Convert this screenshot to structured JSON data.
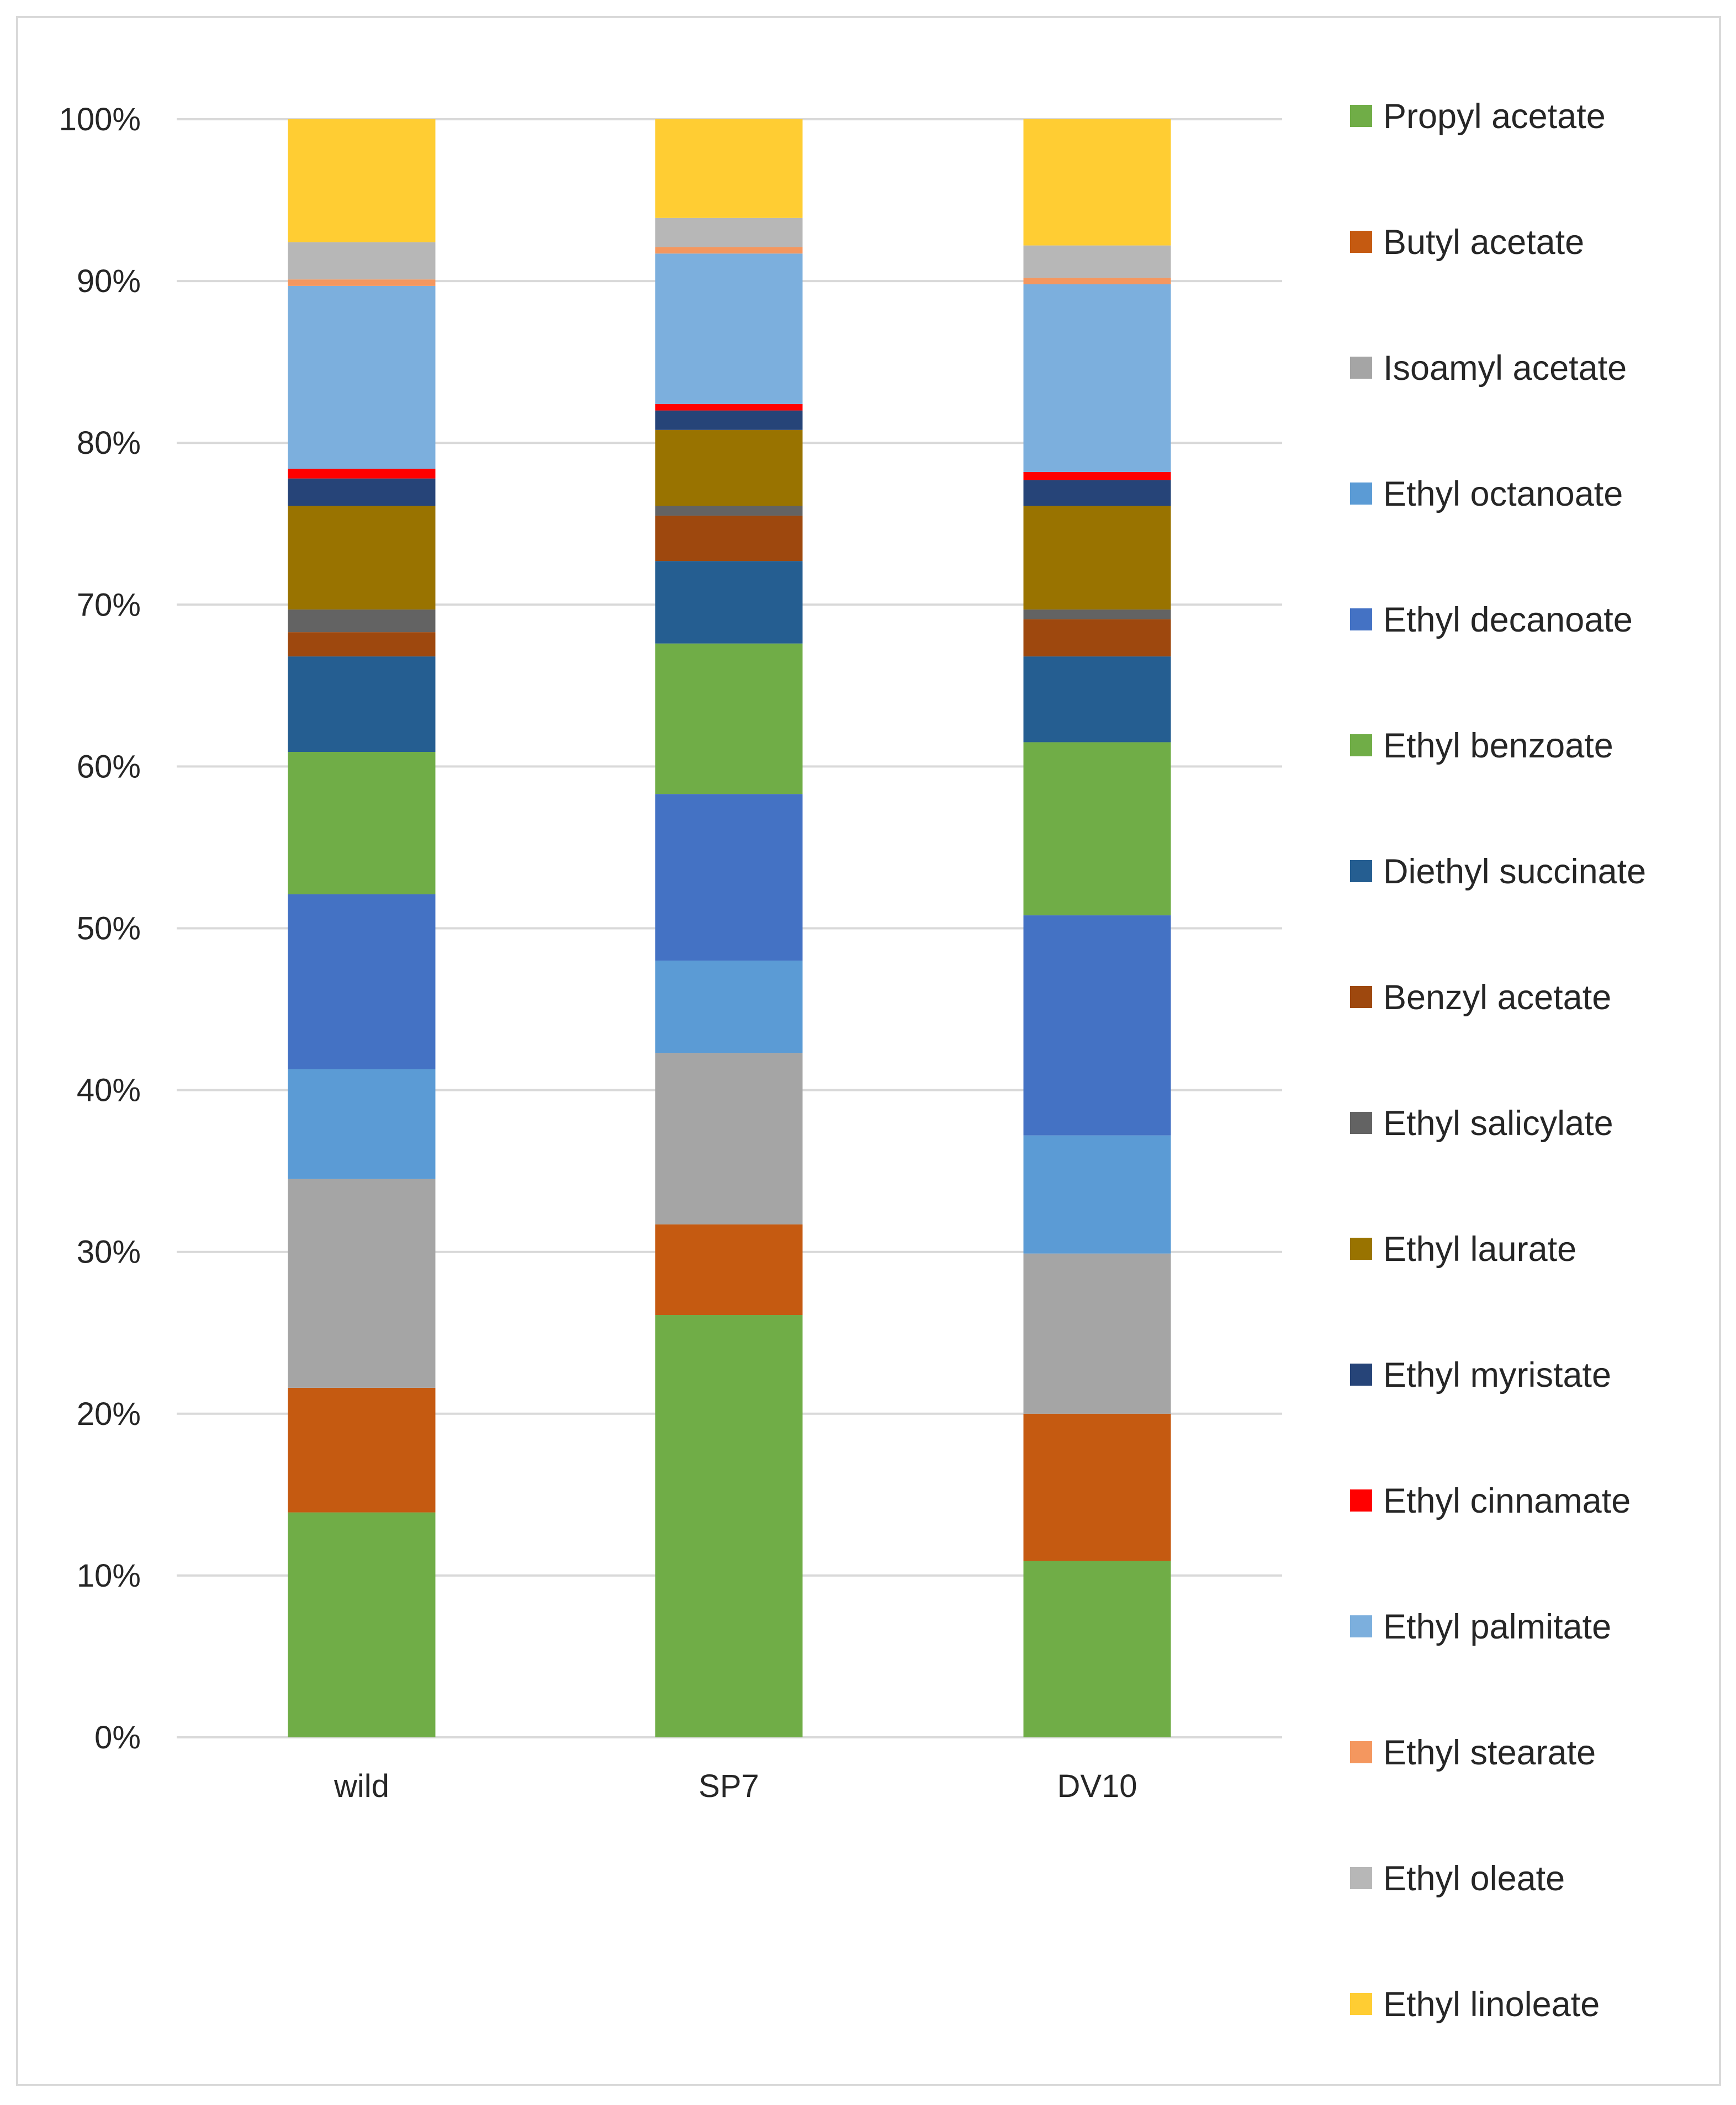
{
  "chart_data": {
    "type": "bar",
    "stacked": true,
    "normalized": true,
    "categories": [
      "wild",
      "SP7",
      "DV10"
    ],
    "ylim": [
      0,
      100
    ],
    "yticks": [
      "0%",
      "10%",
      "20%",
      "30%",
      "40%",
      "50%",
      "60%",
      "70%",
      "80%",
      "90%",
      "100%"
    ],
    "grid": true,
    "legend_position": "right",
    "series": [
      {
        "name": "Propyl acetate",
        "color": "#70ad47",
        "values": [
          13.9,
          26.1,
          10.9
        ]
      },
      {
        "name": "Butyl acetate",
        "color": "#c55a11",
        "values": [
          7.7,
          5.6,
          9.1
        ]
      },
      {
        "name": "Isoamyl acetate",
        "color": "#a5a5a5",
        "values": [
          12.9,
          10.6,
          9.9
        ]
      },
      {
        "name": "Ethyl octanoate",
        "color": "#5b9bd5",
        "values": [
          6.8,
          5.7,
          7.3
        ]
      },
      {
        "name": "Ethyl decanoate",
        "color": "#4472c4",
        "values": [
          10.8,
          10.3,
          13.6
        ]
      },
      {
        "name": "Ethyl benzoate",
        "color": "#70ad47",
        "values": [
          8.8,
          9.3,
          10.7
        ]
      },
      {
        "name": "Diethyl succinate",
        "color": "#255e91",
        "values": [
          5.9,
          5.1,
          5.3
        ]
      },
      {
        "name": "Benzyl acetate",
        "color": "#9e480e",
        "values": [
          1.5,
          2.8,
          2.3
        ]
      },
      {
        "name": "Ethyl salicylate",
        "color": "#636363",
        "values": [
          1.4,
          0.6,
          0.6
        ]
      },
      {
        "name": "Ethyl laurate",
        "color": "#997300",
        "values": [
          6.4,
          4.7,
          6.4
        ]
      },
      {
        "name": "Ethyl myristate",
        "color": "#264478",
        "values": [
          1.7,
          1.2,
          1.6
        ]
      },
      {
        "name": "Ethyl cinnamate",
        "color": "#ff0000",
        "values": [
          0.6,
          0.4,
          0.5
        ]
      },
      {
        "name": "Ethyl palmitate",
        "color": "#7cafdd",
        "values": [
          11.3,
          9.3,
          11.6
        ]
      },
      {
        "name": "Ethyl stearate",
        "color": "#f4975f",
        "values": [
          0.4,
          0.4,
          0.4
        ]
      },
      {
        "name": "Ethyl oleate",
        "color": "#b7b7b7",
        "values": [
          2.3,
          1.8,
          2.0
        ]
      },
      {
        "name": "Ethyl linoleate",
        "color": "#ffcd33",
        "values": [
          7.6,
          6.1,
          7.8
        ]
      }
    ]
  }
}
